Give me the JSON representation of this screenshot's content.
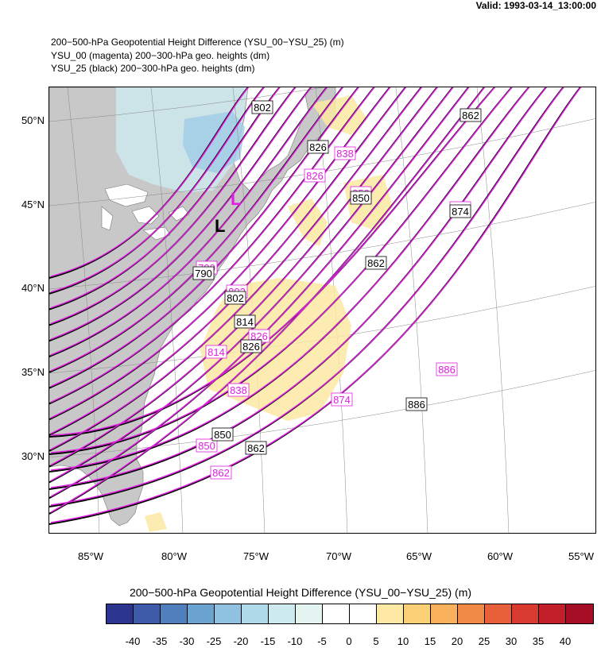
{
  "valid_time": "Valid: 1993-03-14_13:00:00",
  "titles": [
    "200−500-hPa Geopotential Height Difference (YSU_00−YSU_25)   (m)",
    "YSU_00 (magenta) 200−300-hPa geo. heights   (dm)",
    "YSU_25 (black) 200−300-hPa geo. heights   (dm)"
  ],
  "lat_labels": [
    "50°N",
    "45°N",
    "40°N",
    "35°N",
    "30°N"
  ],
  "lon_labels": [
    "85°W",
    "80°W",
    "75°W",
    "70°W",
    "65°W",
    "60°W",
    "55°W"
  ],
  "low_symbol": "L",
  "black_contour_labels": [
    "802",
    "826",
    "862",
    "850",
    "874",
    "790",
    "802",
    "862",
    "814",
    "826",
    "886",
    "850",
    "862"
  ],
  "magenta_contour_labels": [
    "838",
    "826",
    "850",
    "874",
    "790",
    "802",
    "826",
    "814",
    "838",
    "886",
    "874",
    "850",
    "862"
  ],
  "colorbar": {
    "title": "200−500-hPa Geopotential Height Difference (YSU_00−YSU_25)  (m)",
    "labels": [
      "-40",
      "-35",
      "-30",
      "-25",
      "-20",
      "-15",
      "-10",
      "-5",
      "0",
      "5",
      "10",
      "15",
      "20",
      "25",
      "30",
      "35",
      "40"
    ],
    "colors": [
      "#2b3590",
      "#3d5ba8",
      "#4f7fbc",
      "#6aa3cf",
      "#8ec2e0",
      "#b0d9ea",
      "#cdeaef",
      "#e3f4f1",
      "#ffffff",
      "#ffffff",
      "#fde9a3",
      "#fbcf76",
      "#f8b05a",
      "#f28a47",
      "#e8603a",
      "#d93a30",
      "#c21f2a",
      "#a60e26"
    ]
  },
  "colors": {
    "land": "#c8c8c8",
    "ocean": "#ffffff",
    "ysu00": "#e020e0",
    "ysu25": "#000000"
  }
}
